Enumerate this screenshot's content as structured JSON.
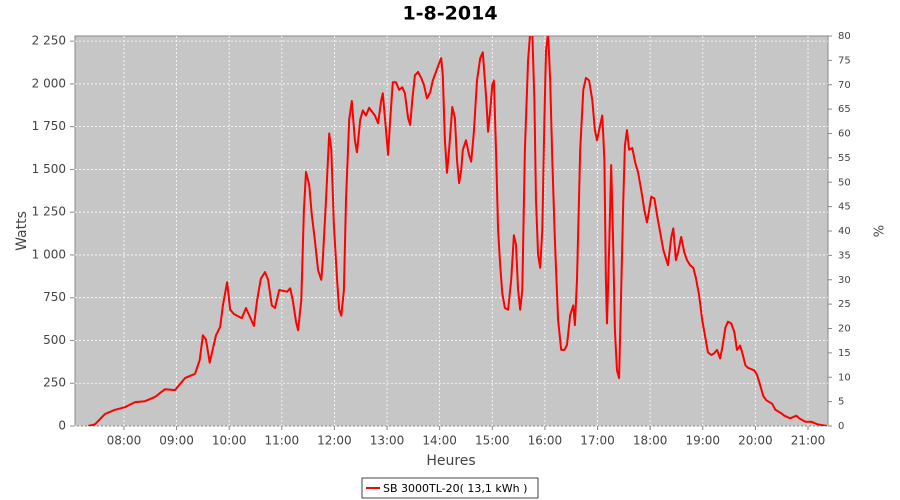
{
  "chart_data": {
    "type": "line",
    "title": "1-8-2014",
    "xlabel": "Heures",
    "ylabel": "Watts",
    "y2label": "%",
    "xlim": [
      7.07,
      21.38
    ],
    "xticks": [
      {
        "value": 8,
        "label": "08:00"
      },
      {
        "value": 9,
        "label": "09:00"
      },
      {
        "value": 10,
        "label": "10:00"
      },
      {
        "value": 11,
        "label": "11:00"
      },
      {
        "value": 12,
        "label": "12:00"
      },
      {
        "value": 13,
        "label": "13:00"
      },
      {
        "value": 14,
        "label": "14:00"
      },
      {
        "value": 15,
        "label": "15:00"
      },
      {
        "value": 16,
        "label": "16:00"
      },
      {
        "value": 17,
        "label": "17:00"
      },
      {
        "value": 18,
        "label": "18:00"
      },
      {
        "value": 19,
        "label": "19:00"
      },
      {
        "value": 20,
        "label": "20:00"
      },
      {
        "value": 21,
        "label": "21:00"
      }
    ],
    "ylim": [
      0,
      2280
    ],
    "yticks": [
      0,
      250,
      500,
      750,
      {
        "value": 1000,
        "label": "1 000"
      },
      {
        "value": 1250,
        "label": "1 250"
      },
      {
        "value": 1500,
        "label": "1 500"
      },
      {
        "value": 1750,
        "label": "1 750"
      },
      {
        "value": 2000,
        "label": "2 000"
      },
      {
        "value": 2250,
        "label": "2 250"
      }
    ],
    "y2lim": [
      0,
      80
    ],
    "y2ticks": [
      0,
      5,
      10,
      15,
      20,
      25,
      30,
      35,
      40,
      45,
      50,
      55,
      60,
      65,
      70,
      75,
      80
    ],
    "grid": true,
    "legend": "bottom",
    "series": [
      {
        "name": "SB 3000TL-20( 13,1 kWh )",
        "color": "#ff0000",
        "x": [
          7.32,
          7.45,
          7.64,
          7.83,
          8.02,
          8.21,
          8.4,
          8.59,
          8.78,
          8.97,
          9.16,
          9.35,
          9.44,
          9.5,
          9.56,
          9.63,
          9.75,
          9.83,
          9.88,
          9.96,
          10.02,
          10.09,
          10.24,
          10.32,
          10.47,
          10.53,
          10.6,
          10.68,
          10.74,
          10.81,
          10.87,
          10.95,
          11.1,
          11.16,
          11.21,
          11.27,
          11.31,
          11.37,
          11.42,
          11.46,
          11.52,
          11.57,
          11.63,
          11.69,
          11.75,
          11.78,
          11.84,
          11.9,
          11.94,
          11.99,
          12.05,
          12.09,
          12.13,
          12.18,
          12.22,
          12.28,
          12.33,
          12.39,
          12.43,
          12.49,
          12.54,
          12.6,
          12.66,
          12.77,
          12.83,
          12.89,
          12.92,
          12.98,
          13.02,
          13.06,
          13.11,
          13.17,
          13.23,
          13.29,
          13.34,
          13.4,
          13.44,
          13.48,
          13.53,
          13.59,
          13.65,
          13.7,
          13.76,
          13.82,
          13.87,
          13.93,
          13.99,
          14.03,
          14.06,
          14.1,
          14.14,
          14.18,
          14.24,
          14.29,
          14.33,
          14.37,
          14.41,
          14.44,
          14.5,
          14.56,
          14.6,
          14.65,
          14.71,
          14.77,
          14.82,
          14.88,
          14.92,
          14.96,
          15.0,
          15.03,
          15.07,
          15.11,
          15.15,
          15.19,
          15.24,
          15.3,
          15.36,
          15.41,
          15.45,
          15.49,
          15.53,
          15.57,
          15.62,
          15.68,
          15.72,
          15.76,
          15.8,
          15.83,
          15.87,
          15.91,
          15.95,
          15.99,
          16.02,
          16.06,
          16.1,
          16.14,
          16.19,
          16.25,
          16.31,
          16.37,
          16.42,
          16.48,
          16.54,
          16.57,
          16.61,
          16.67,
          16.73,
          16.78,
          16.84,
          16.9,
          16.95,
          16.99,
          17.05,
          17.09,
          17.13,
          17.16,
          17.18,
          17.22,
          17.26,
          17.3,
          17.33,
          17.37,
          17.41,
          17.45,
          17.49,
          17.52,
          17.56,
          17.6,
          17.66,
          17.72,
          17.77,
          17.83,
          17.89,
          17.94,
          17.98,
          18.02,
          18.08,
          18.13,
          18.19,
          18.25,
          18.3,
          18.34,
          18.4,
          18.44,
          18.49,
          18.53,
          18.59,
          18.65,
          18.7,
          18.76,
          18.82,
          18.87,
          18.93,
          18.99,
          19.05,
          19.1,
          19.16,
          19.22,
          19.27,
          19.33,
          19.37,
          19.43,
          19.48,
          19.54,
          19.6,
          19.65,
          19.71,
          19.75,
          19.81,
          19.86,
          19.98,
          20.03,
          20.09,
          20.15,
          20.21,
          20.32,
          20.38,
          20.49,
          20.55,
          20.66,
          20.78,
          20.83,
          20.95,
          21.06,
          21.18,
          21.36
        ],
        "values": [
          0,
          10,
          70,
          95,
          110,
          140,
          145,
          170,
          215,
          210,
          280,
          305,
          385,
          530,
          505,
          370,
          530,
          580,
          705,
          840,
          680,
          655,
          630,
          690,
          585,
          735,
          860,
          900,
          855,
          705,
          690,
          795,
          785,
          805,
          735,
          610,
          560,
          735,
          1260,
          1485,
          1410,
          1235,
          1085,
          910,
          855,
          970,
          1320,
          1710,
          1615,
          1175,
          855,
          680,
          645,
          795,
          1320,
          1790,
          1900,
          1670,
          1600,
          1790,
          1845,
          1815,
          1860,
          1815,
          1770,
          1905,
          1945,
          1730,
          1585,
          1790,
          2010,
          2010,
          1965,
          1980,
          1945,
          1800,
          1760,
          1905,
          2050,
          2070,
          2035,
          1995,
          1915,
          1950,
          2020,
          2070,
          2120,
          2150,
          2050,
          1670,
          1480,
          1615,
          1865,
          1800,
          1555,
          1420,
          1495,
          1615,
          1670,
          1585,
          1545,
          1720,
          2020,
          2150,
          2185,
          1935,
          1720,
          1845,
          1995,
          2020,
          1615,
          1145,
          940,
          775,
          690,
          680,
          855,
          1115,
          1060,
          795,
          680,
          795,
          1615,
          2140,
          2300,
          2300,
          1905,
          1320,
          1000,
          925,
          1145,
          1790,
          2195,
          2300,
          2020,
          1555,
          1085,
          620,
          445,
          445,
          475,
          650,
          705,
          590,
          855,
          1615,
          1965,
          2035,
          2020,
          1905,
          1730,
          1670,
          1760,
          1815,
          1555,
          855,
          600,
          1030,
          1525,
          1030,
          560,
          325,
          280,
          795,
          1320,
          1640,
          1730,
          1615,
          1625,
          1535,
          1485,
          1380,
          1260,
          1190,
          1260,
          1340,
          1330,
          1235,
          1135,
          1030,
          980,
          940,
          1100,
          1155,
          970,
          1015,
          1105,
          1015,
          970,
          940,
          925,
          865,
          765,
          620,
          515,
          430,
          415,
          425,
          445,
          395,
          455,
          575,
          610,
          600,
          550,
          445,
          470,
          430,
          355,
          340,
          325,
          300,
          240,
          175,
          150,
          130,
          95,
          75,
          60,
          45,
          60,
          45,
          25,
          25,
          10,
          0
        ]
      }
    ]
  }
}
